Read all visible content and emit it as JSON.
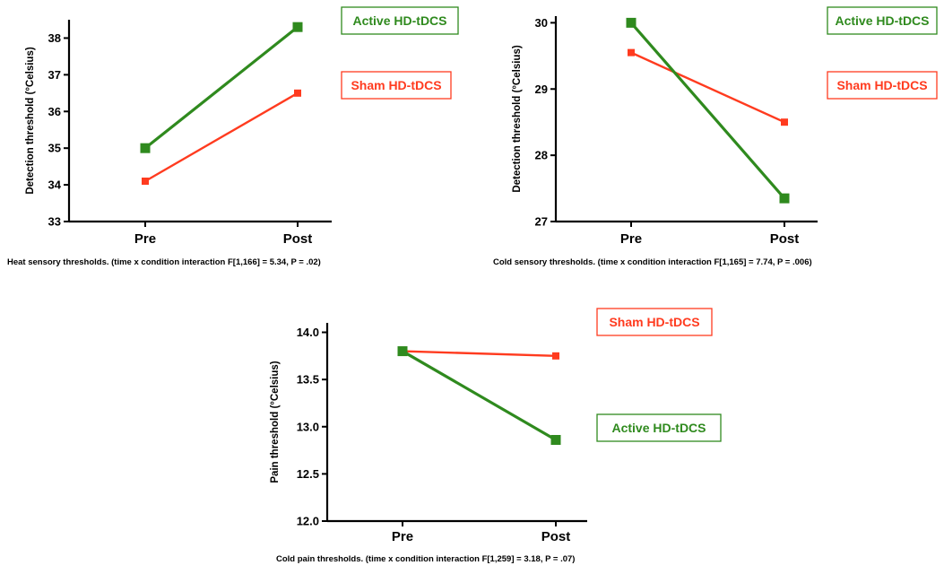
{
  "colors": {
    "active": "#2f8a1e",
    "sham": "#ff3b1f",
    "axis": "#000000"
  },
  "chart_data": [
    {
      "type": "line",
      "categories": [
        "Pre",
        "Post"
      ],
      "ylabel": "Detection threshold (°Celsius)",
      "ylim": [
        33,
        38.5
      ],
      "yticks": [
        "33",
        "34",
        "35",
        "36",
        "37",
        "38"
      ],
      "caption": "Heat sensory thresholds. (time x condition interaction F[1,166] = 5.34, P = .02)",
      "series": [
        {
          "name": "Active HD-tDCS",
          "values": [
            35.0,
            38.3
          ],
          "color": "#2f8a1e"
        },
        {
          "name": "Sham HD-tDCS",
          "values": [
            34.1,
            36.5
          ],
          "color": "#ff3b1f"
        }
      ],
      "legend_placement": "right"
    },
    {
      "type": "line",
      "categories": [
        "Pre",
        "Post"
      ],
      "ylabel": "Detection threshold (°Celsius)",
      "ylim": [
        27,
        30.1
      ],
      "yticks": [
        "27",
        "28",
        "29",
        "30"
      ],
      "caption": "Cold sensory thresholds. (time x condition interaction F[1,165] = 7.74, P = .006)",
      "series": [
        {
          "name": "Active HD-tDCS",
          "values": [
            30.0,
            27.35
          ],
          "color": "#2f8a1e"
        },
        {
          "name": "Sham HD-tDCS",
          "values": [
            29.55,
            28.5
          ],
          "color": "#ff3b1f"
        }
      ],
      "legend_placement": "right"
    },
    {
      "type": "line",
      "categories": [
        "Pre",
        "Post"
      ],
      "ylabel": "Pain threshold (°Celsius)",
      "ylim": [
        12.0,
        14.1
      ],
      "yticks": [
        "12.0",
        "12.5",
        "13.0",
        "13.5",
        "14.0"
      ],
      "caption": "Cold pain thresholds. (time x condition interaction F[1,259] = 3.18, P = .07)",
      "series": [
        {
          "name": "Active HD-tDCS",
          "values": [
            13.8,
            12.86
          ],
          "color": "#2f8a1e"
        },
        {
          "name": "Sham HD-tDCS",
          "values": [
            13.8,
            13.75
          ],
          "color": "#ff3b1f"
        }
      ],
      "legend_placement": "right"
    }
  ]
}
